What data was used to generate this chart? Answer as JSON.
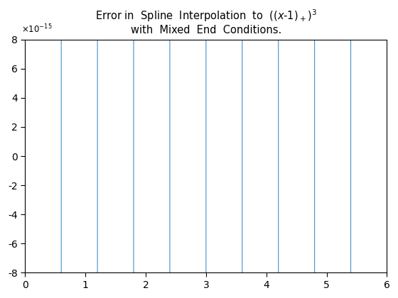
{
  "title_line1": "Error in  Spline  Interpolation  to  $((x-1)_+)^3$",
  "title_line2": "with  Mixed  End  Conditions.",
  "xlim": [
    0,
    6
  ],
  "ylim_min": -8e-15,
  "ylim_max": 8e-15,
  "ytick_scale": 1e-15,
  "yticks": [
    -8,
    -6,
    -4,
    -2,
    0,
    2,
    4,
    6,
    8
  ],
  "xticks": [
    0,
    1,
    2,
    3,
    4,
    5,
    6
  ],
  "line_color": "#4191c9",
  "background_color": "#ffffff",
  "n_knots": 11,
  "scale_label": "x10^{-15}"
}
